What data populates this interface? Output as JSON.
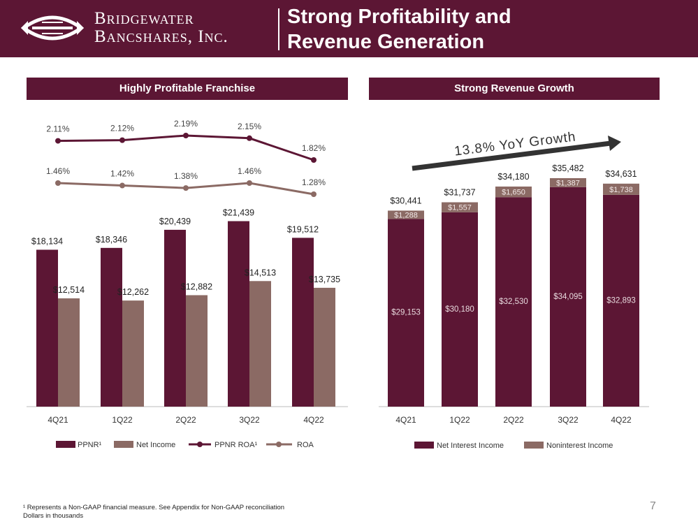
{
  "header": {
    "company_line1": "Bridgewater",
    "company_line2": "Bancshares, Inc.",
    "title_line1": "Strong Profitability and",
    "title_line2": "Revenue Generation"
  },
  "panels": {
    "left_title": "Highly Profitable Franchise",
    "right_title": "Strong Revenue Growth"
  },
  "colors": {
    "maroon": "#5c1634",
    "taupe": "#8b6a64",
    "arrow": "#333333"
  },
  "chart_data": [
    {
      "type": "bar",
      "title": "Highly Profitable Franchise",
      "categories": [
        "4Q21",
        "1Q22",
        "2Q22",
        "3Q22",
        "4Q22"
      ],
      "series": [
        {
          "name": "PPNR¹",
          "values": [
            18134,
            18346,
            20439,
            21439,
            19512
          ],
          "labels": [
            "$18,134",
            "$18,346",
            "$20,439",
            "$21,439",
            "$19,512"
          ]
        },
        {
          "name": "Net Income",
          "values": [
            12514,
            12262,
            12882,
            14513,
            13735
          ],
          "labels": [
            "$12,514",
            "$12,262",
            "$12,882",
            "$14,513",
            "$13,735"
          ]
        }
      ],
      "line_series": [
        {
          "name": "PPNR ROA¹",
          "values": [
            2.11,
            2.12,
            2.19,
            2.15,
            1.82
          ],
          "labels": [
            "2.11%",
            "2.12%",
            "2.19%",
            "2.15%",
            "1.82%"
          ]
        },
        {
          "name": "ROA",
          "values": [
            1.46,
            1.42,
            1.38,
            1.46,
            1.28
          ],
          "labels": [
            "1.46%",
            "1.42%",
            "1.38%",
            "1.46%",
            "1.28%"
          ]
        }
      ],
      "ylim": [
        0,
        23500
      ],
      "xlabel": "",
      "ylabel": "",
      "legend_position": "bottom"
    },
    {
      "type": "bar",
      "stacked": true,
      "title": "Strong Revenue Growth",
      "categories": [
        "4Q21",
        "1Q22",
        "2Q22",
        "3Q22",
        "4Q22"
      ],
      "series": [
        {
          "name": "Net Interest Income",
          "values": [
            29153,
            30180,
            32530,
            34095,
            32893
          ],
          "labels": [
            "$29,153",
            "$30,180",
            "$32,530",
            "$34,095",
            "$32,893"
          ]
        },
        {
          "name": "Noninterest Income",
          "values": [
            1288,
            1557,
            1650,
            1387,
            1738
          ],
          "labels": [
            "$1,288",
            "$1,557",
            "$1,650",
            "$1,387",
            "$1,738"
          ]
        }
      ],
      "totals": [
        30441,
        31737,
        34180,
        35482,
        34631
      ],
      "total_labels": [
        "$30,441",
        "$31,737",
        "$34,180",
        "$35,482",
        "$34,631"
      ],
      "annotation": "13.8% YoY Growth",
      "ylim": [
        0,
        35482
      ],
      "xlabel": "",
      "ylabel": "",
      "legend_position": "bottom"
    }
  ],
  "footnote": {
    "line1": "¹ Represents a Non-GAAP financial measure. See Appendix for Non-GAAP reconciliation",
    "line2": "Dollars in thousands"
  },
  "page_number": "7"
}
